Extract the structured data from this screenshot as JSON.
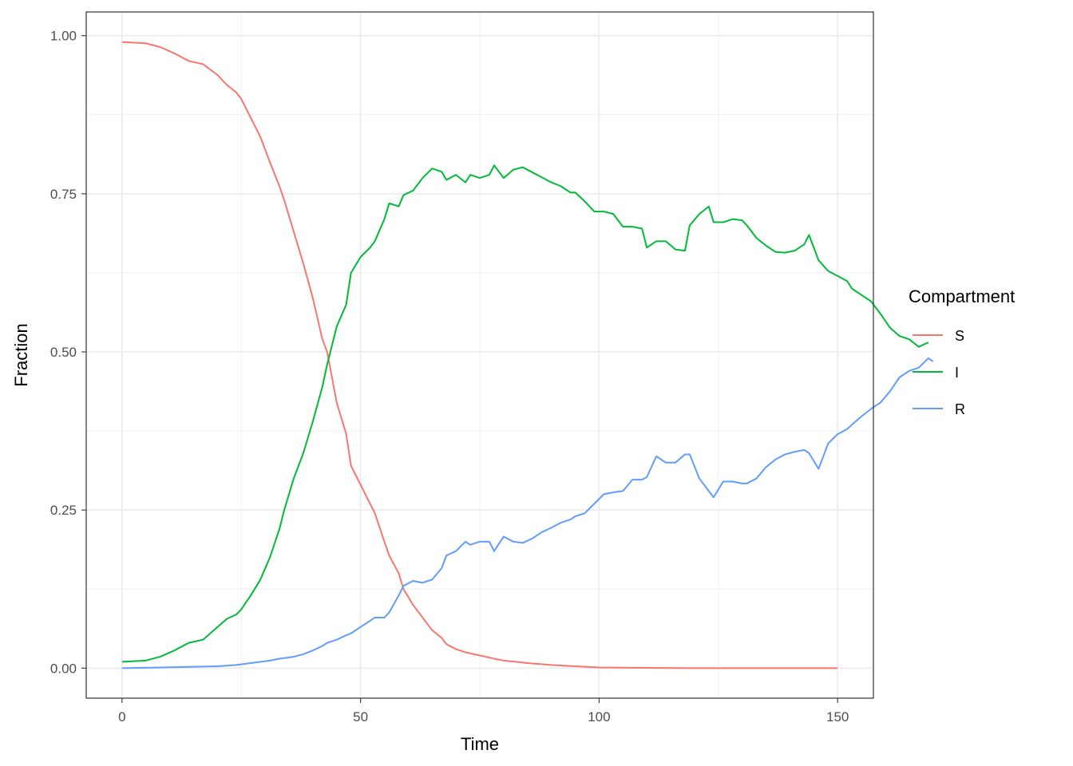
{
  "chart_data": {
    "type": "line",
    "title": "",
    "xlabel": "Time",
    "ylabel": "Fraction",
    "xlim": [
      -7.5,
      157.5
    ],
    "ylim": [
      -0.0475,
      1.0375
    ],
    "x_ticks": [
      0,
      50,
      100,
      150
    ],
    "x_tick_labels": [
      "0",
      "50",
      "100",
      "150"
    ],
    "y_ticks": [
      0,
      0.25,
      0.5,
      0.75,
      1.0
    ],
    "y_tick_labels": [
      "0.00",
      "0.25",
      "0.50",
      "0.75",
      "1.00"
    ],
    "grid": true,
    "legend": {
      "title": "Compartment",
      "position": "right"
    },
    "series": [
      {
        "name": "S",
        "color": "#F8766D",
        "points": [
          [
            0,
            0.99
          ],
          [
            5,
            0.988
          ],
          [
            8,
            0.982
          ],
          [
            11,
            0.972
          ],
          [
            14,
            0.96
          ],
          [
            17,
            0.955
          ],
          [
            20,
            0.938
          ],
          [
            22,
            0.922
          ],
          [
            24,
            0.91
          ],
          [
            25,
            0.9
          ],
          [
            27,
            0.87
          ],
          [
            29,
            0.84
          ],
          [
            31,
            0.8
          ],
          [
            33,
            0.762
          ],
          [
            34,
            0.74
          ],
          [
            36,
            0.69
          ],
          [
            38,
            0.64
          ],
          [
            40,
            0.585
          ],
          [
            42,
            0.52
          ],
          [
            43,
            0.5
          ],
          [
            45,
            0.42
          ],
          [
            47,
            0.37
          ],
          [
            48,
            0.32
          ],
          [
            50,
            0.29
          ],
          [
            52,
            0.26
          ],
          [
            53,
            0.245
          ],
          [
            55,
            0.2
          ],
          [
            56,
            0.178
          ],
          [
            58,
            0.15
          ],
          [
            59,
            0.125
          ],
          [
            61,
            0.1
          ],
          [
            63,
            0.08
          ],
          [
            65,
            0.06
          ],
          [
            67,
            0.048
          ],
          [
            68,
            0.038
          ],
          [
            70,
            0.03
          ],
          [
            72,
            0.025
          ],
          [
            75,
            0.02
          ],
          [
            78,
            0.015
          ],
          [
            80,
            0.012
          ],
          [
            85,
            0.008
          ],
          [
            90,
            0.005
          ],
          [
            95,
            0.003
          ],
          [
            100,
            0.001
          ],
          [
            110,
            0.0005
          ],
          [
            120,
            0
          ],
          [
            150,
            0
          ]
        ]
      },
      {
        "name": "I",
        "color": "#00BA38",
        "points": [
          [
            0,
            0.01
          ],
          [
            5,
            0.012
          ],
          [
            8,
            0.018
          ],
          [
            11,
            0.028
          ],
          [
            14,
            0.04
          ],
          [
            17,
            0.045
          ],
          [
            20,
            0.065
          ],
          [
            22,
            0.078
          ],
          [
            24,
            0.085
          ],
          [
            25,
            0.093
          ],
          [
            27,
            0.115
          ],
          [
            29,
            0.14
          ],
          [
            31,
            0.175
          ],
          [
            33,
            0.22
          ],
          [
            34,
            0.25
          ],
          [
            36,
            0.3
          ],
          [
            38,
            0.34
          ],
          [
            40,
            0.39
          ],
          [
            42,
            0.445
          ],
          [
            43,
            0.48
          ],
          [
            45,
            0.54
          ],
          [
            47,
            0.575
          ],
          [
            48,
            0.625
          ],
          [
            50,
            0.65
          ],
          [
            52,
            0.665
          ],
          [
            53,
            0.675
          ],
          [
            55,
            0.71
          ],
          [
            56,
            0.735
          ],
          [
            58,
            0.73
          ],
          [
            59,
            0.748
          ],
          [
            61,
            0.755
          ],
          [
            63,
            0.775
          ],
          [
            65,
            0.79
          ],
          [
            67,
            0.785
          ],
          [
            68,
            0.772
          ],
          [
            70,
            0.78
          ],
          [
            72,
            0.768
          ],
          [
            73,
            0.78
          ],
          [
            75,
            0.775
          ],
          [
            77,
            0.78
          ],
          [
            78,
            0.795
          ],
          [
            80,
            0.775
          ],
          [
            82,
            0.788
          ],
          [
            84,
            0.792
          ],
          [
            86,
            0.784
          ],
          [
            88,
            0.776
          ],
          [
            90,
            0.768
          ],
          [
            92,
            0.762
          ],
          [
            94,
            0.752
          ],
          [
            95,
            0.752
          ],
          [
            97,
            0.738
          ],
          [
            99,
            0.722
          ],
          [
            101,
            0.722
          ],
          [
            103,
            0.718
          ],
          [
            105,
            0.698
          ],
          [
            107,
            0.698
          ],
          [
            109,
            0.695
          ],
          [
            110,
            0.665
          ],
          [
            112,
            0.675
          ],
          [
            114,
            0.675
          ],
          [
            116,
            0.662
          ],
          [
            118,
            0.66
          ],
          [
            119,
            0.7
          ],
          [
            121,
            0.718
          ],
          [
            123,
            0.73
          ],
          [
            124,
            0.705
          ],
          [
            126,
            0.705
          ],
          [
            128,
            0.71
          ],
          [
            130,
            0.708
          ],
          [
            131,
            0.7
          ],
          [
            133,
            0.68
          ],
          [
            135,
            0.668
          ],
          [
            137,
            0.658
          ],
          [
            139,
            0.657
          ],
          [
            141,
            0.66
          ],
          [
            143,
            0.67
          ],
          [
            144,
            0.685
          ],
          [
            146,
            0.645
          ],
          [
            148,
            0.628
          ],
          [
            150,
            0.62
          ],
          [
            152,
            0.612
          ],
          [
            153,
            0.6
          ],
          [
            155,
            0.59
          ],
          [
            157,
            0.58
          ],
          [
            159,
            0.56
          ],
          [
            161,
            0.538
          ],
          [
            163,
            0.525
          ],
          [
            165,
            0.52
          ],
          [
            167,
            0.508
          ],
          [
            169,
            0.515
          ]
        ]
      },
      {
        "name": "R",
        "color": "#619CFF",
        "points": [
          [
            0,
            0
          ],
          [
            8,
            0.001
          ],
          [
            14,
            0.002
          ],
          [
            20,
            0.003
          ],
          [
            24,
            0.005
          ],
          [
            27,
            0.008
          ],
          [
            31,
            0.012
          ],
          [
            33,
            0.015
          ],
          [
            36,
            0.018
          ],
          [
            38,
            0.022
          ],
          [
            40,
            0.028
          ],
          [
            42,
            0.035
          ],
          [
            43,
            0.04
          ],
          [
            45,
            0.045
          ],
          [
            47,
            0.052
          ],
          [
            48,
            0.055
          ],
          [
            50,
            0.065
          ],
          [
            52,
            0.075
          ],
          [
            53,
            0.08
          ],
          [
            55,
            0.08
          ],
          [
            56,
            0.088
          ],
          [
            58,
            0.115
          ],
          [
            59,
            0.13
          ],
          [
            61,
            0.138
          ],
          [
            63,
            0.135
          ],
          [
            65,
            0.14
          ],
          [
            67,
            0.158
          ],
          [
            68,
            0.178
          ],
          [
            70,
            0.185
          ],
          [
            72,
            0.2
          ],
          [
            73,
            0.195
          ],
          [
            75,
            0.2
          ],
          [
            77,
            0.2
          ],
          [
            78,
            0.185
          ],
          [
            80,
            0.208
          ],
          [
            82,
            0.2
          ],
          [
            84,
            0.198
          ],
          [
            86,
            0.205
          ],
          [
            88,
            0.215
          ],
          [
            90,
            0.222
          ],
          [
            92,
            0.23
          ],
          [
            94,
            0.235
          ],
          [
            95,
            0.24
          ],
          [
            97,
            0.245
          ],
          [
            99,
            0.26
          ],
          [
            101,
            0.275
          ],
          [
            103,
            0.278
          ],
          [
            105,
            0.28
          ],
          [
            107,
            0.298
          ],
          [
            109,
            0.298
          ],
          [
            110,
            0.302
          ],
          [
            112,
            0.335
          ],
          [
            114,
            0.325
          ],
          [
            116,
            0.325
          ],
          [
            118,
            0.338
          ],
          [
            119,
            0.338
          ],
          [
            121,
            0.3
          ],
          [
            123,
            0.28
          ],
          [
            124,
            0.27
          ],
          [
            126,
            0.295
          ],
          [
            128,
            0.295
          ],
          [
            130,
            0.292
          ],
          [
            131,
            0.292
          ],
          [
            133,
            0.3
          ],
          [
            135,
            0.318
          ],
          [
            137,
            0.33
          ],
          [
            139,
            0.338
          ],
          [
            141,
            0.342
          ],
          [
            143,
            0.345
          ],
          [
            144,
            0.34
          ],
          [
            146,
            0.315
          ],
          [
            148,
            0.355
          ],
          [
            150,
            0.37
          ],
          [
            152,
            0.378
          ],
          [
            153,
            0.385
          ],
          [
            155,
            0.398
          ],
          [
            157,
            0.41
          ],
          [
            159,
            0.42
          ],
          [
            161,
            0.438
          ],
          [
            163,
            0.46
          ],
          [
            165,
            0.47
          ],
          [
            167,
            0.475
          ],
          [
            169,
            0.49
          ],
          [
            170,
            0.485
          ]
        ]
      }
    ]
  }
}
